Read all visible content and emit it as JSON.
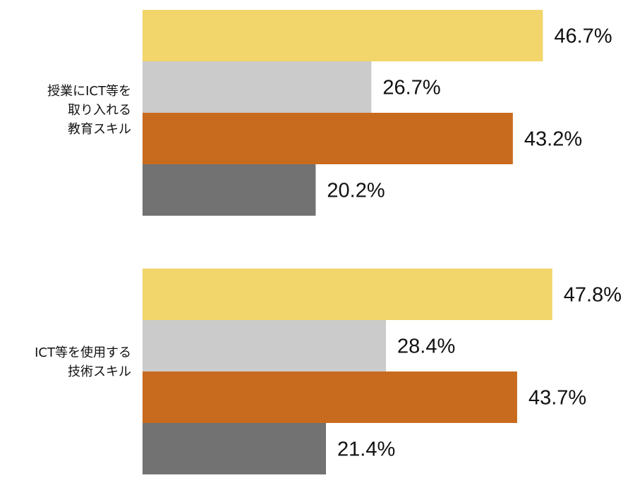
{
  "chart_data": {
    "type": "bar",
    "orientation": "horizontal",
    "categories": [
      [
        "授業にICT等を",
        "取り入れる",
        "教育スキル"
      ],
      [
        "ICT等を使用する",
        "技術スキル"
      ]
    ],
    "series": [
      {
        "values": [
          46.7,
          47.8
        ],
        "color": "#f2d56b"
      },
      {
        "values": [
          26.7,
          28.4
        ],
        "color": "#cbcbcb"
      },
      {
        "values": [
          43.2,
          43.7
        ],
        "color": "#c96b1e"
      },
      {
        "values": [
          20.2,
          21.4
        ],
        "color": "#727272"
      }
    ],
    "value_labels": [
      [
        "46.7%",
        "26.7%",
        "43.2%",
        "20.2%"
      ],
      [
        "47.8%",
        "28.4%",
        "43.7%",
        "21.4%"
      ]
    ],
    "xlim": [
      0,
      50
    ],
    "grid": false,
    "legend": "none"
  }
}
